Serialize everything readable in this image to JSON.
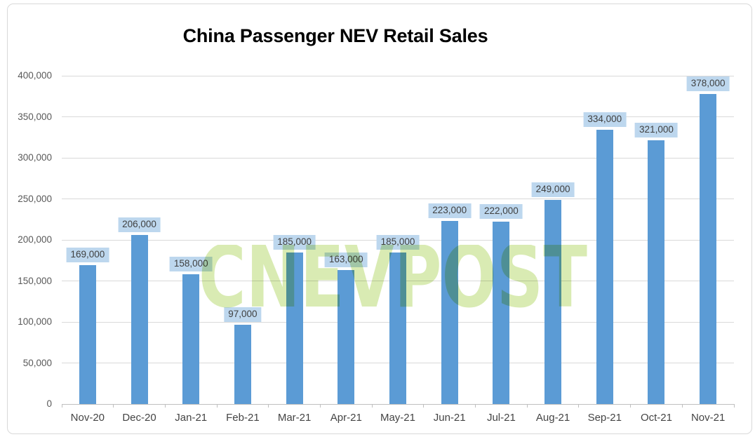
{
  "watermark": {
    "text": "CNEVPOST",
    "color": "#D9EBB3"
  },
  "chart_data": {
    "type": "bar",
    "title": "China Passenger NEV Retail Sales",
    "categories": [
      "Nov-20",
      "Dec-20",
      "Jan-21",
      "Feb-21",
      "Mar-21",
      "Apr-21",
      "May-21",
      "Jun-21",
      "Jul-21",
      "Aug-21",
      "Sep-21",
      "Oct-21",
      "Nov-21"
    ],
    "values": [
      169000,
      206000,
      158000,
      97000,
      185000,
      163000,
      185000,
      223000,
      222000,
      249000,
      334000,
      321000,
      378000
    ],
    "bar_labels": [
      "169,000",
      "206,000",
      "158,000",
      "97,000",
      "185,000",
      "163,000",
      "185,000",
      "223,000",
      "222,000",
      "249,000",
      "334,000",
      "321,000",
      "378,000"
    ],
    "yticks": [
      "0",
      "50,000",
      "100,000",
      "150,000",
      "200,000",
      "250,000",
      "300,000",
      "350,000",
      "400,000"
    ],
    "ylim": [
      0,
      400000
    ],
    "ytick_step": 50000,
    "xlabel": "",
    "ylabel": "",
    "grid": true,
    "legend": false,
    "colors": {
      "bar": "#5B9BD5",
      "bar_label_bg": "#BDD7EE",
      "bar_label_text": "#404040",
      "axis_text_y": "#595959",
      "axis_text_x": "#444444",
      "gridline": "#D9D9D9",
      "axis_line": "#BFBFBF",
      "frame_border": "#D9D9D9",
      "title_text": "#000000"
    }
  }
}
